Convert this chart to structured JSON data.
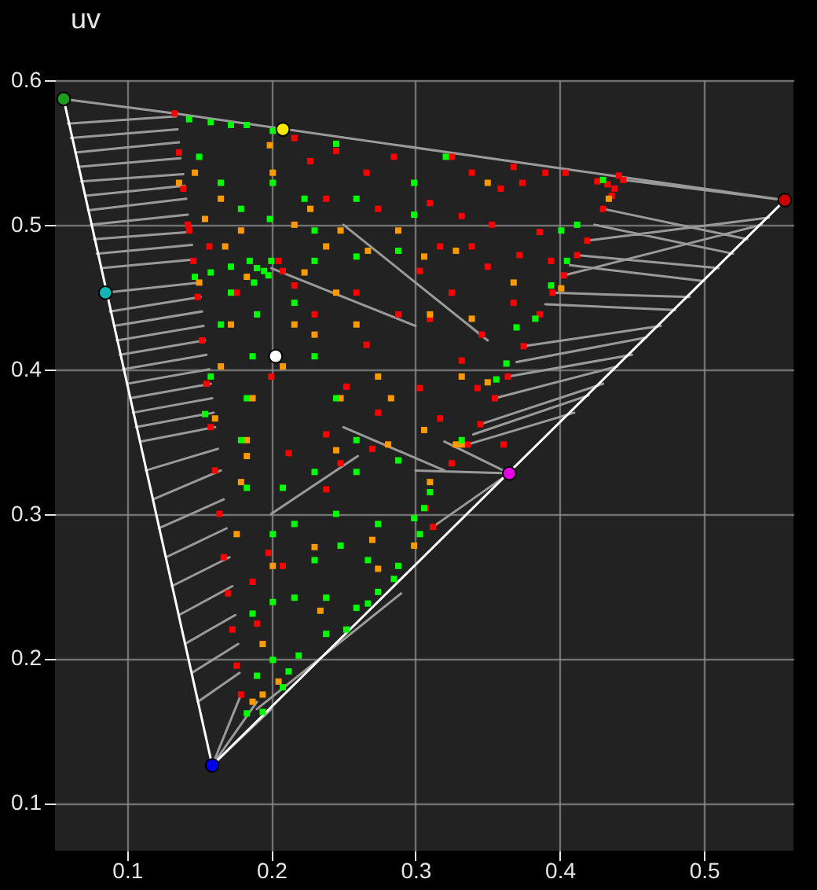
{
  "chart_data": {
    "type": "scatter",
    "title": "uv",
    "xlim": [
      0.05,
      0.562
    ],
    "ylim": [
      0.067,
      0.6
    ],
    "xticks": [
      0.1,
      0.2,
      0.3,
      0.4,
      0.5
    ],
    "yticks": [
      0.1,
      0.2,
      0.3,
      0.4,
      0.5,
      0.6
    ],
    "grid": true,
    "series": [
      {
        "type": "line",
        "color": "#9a9a9a",
        "x": [
          0.056,
          0.133,
          null,
          0.059,
          0.134,
          null,
          0.061,
          0.135,
          null,
          0.064,
          0.136,
          null,
          0.066,
          0.137,
          null,
          0.068,
          0.139,
          null,
          0.071,
          0.14,
          null,
          0.073,
          0.141,
          null,
          0.075,
          0.142,
          null,
          0.077,
          0.144,
          null,
          0.079,
          0.145,
          null,
          0.082,
          0.147,
          null,
          0.085,
          0.15,
          null,
          0.088,
          0.151,
          null,
          0.091,
          0.152,
          null,
          0.093,
          0.153,
          null,
          0.095,
          0.154,
          null,
          0.097,
          0.155,
          null,
          0.1,
          0.157,
          null,
          0.102,
          0.158,
          null,
          0.104,
          0.159,
          null,
          0.106,
          0.16,
          null,
          0.109,
          0.161,
          null,
          0.113,
          0.163,
          null,
          0.118,
          0.165,
          null,
          0.122,
          0.167,
          null,
          0.127,
          0.169,
          null,
          0.131,
          0.171,
          null,
          0.136,
          0.173,
          null,
          0.14,
          0.175,
          null,
          0.145,
          0.177,
          null,
          0.149,
          0.178,
          null,
          0.159,
          0.179,
          null,
          0.159,
          0.19,
          null,
          0.159,
          0.2,
          null,
          0.133,
          0.556,
          null,
          0.556,
          0.444,
          null,
          0.545,
          0.419,
          null,
          0.54,
          0.403,
          null,
          0.53,
          0.43,
          null,
          0.52,
          0.424,
          null,
          0.51,
          0.412,
          null,
          0.5,
          0.407,
          null,
          0.49,
          0.395,
          null,
          0.48,
          0.39,
          null,
          0.47,
          0.375,
          null,
          0.46,
          0.37,
          null,
          0.45,
          0.364,
          null,
          0.44,
          0.355,
          null,
          0.43,
          0.345,
          null,
          0.42,
          0.34,
          null,
          0.41,
          0.336,
          null,
          0.365,
          0.312,
          null,
          0.365,
          0.3,
          null,
          0.365,
          0.32,
          null,
          0.19,
          0.29,
          null,
          0.2,
          0.26,
          null,
          0.25,
          0.32,
          null,
          0.2,
          0.3,
          null,
          0.25,
          0.35
        ],
        "values": [
          0.587,
          0.577,
          null,
          0.57,
          0.575,
          null,
          0.56,
          0.566,
          null,
          0.55,
          0.557,
          null,
          0.54,
          0.546,
          null,
          0.53,
          0.535,
          null,
          0.52,
          0.527,
          null,
          0.51,
          0.518,
          null,
          0.5,
          0.507,
          null,
          0.49,
          0.495,
          null,
          0.48,
          0.486,
          null,
          0.47,
          0.476,
          null,
          0.453,
          0.46,
          null,
          0.44,
          0.45,
          null,
          0.43,
          0.44,
          null,
          0.42,
          0.43,
          null,
          0.41,
          0.42,
          null,
          0.4,
          0.41,
          null,
          0.39,
          0.4,
          null,
          0.38,
          0.39,
          null,
          0.37,
          0.38,
          null,
          0.36,
          0.37,
          null,
          0.35,
          0.36,
          null,
          0.33,
          0.345,
          null,
          0.31,
          0.33,
          null,
          0.29,
          0.31,
          null,
          0.27,
          0.29,
          null,
          0.25,
          0.27,
          null,
          0.23,
          0.25,
          null,
          0.21,
          0.23,
          null,
          0.19,
          0.21,
          null,
          0.17,
          0.19,
          null,
          0.126,
          0.175,
          null,
          0.126,
          0.17,
          null,
          0.126,
          0.165,
          null,
          0.577,
          0.517,
          null,
          0.517,
          0.531,
          null,
          0.505,
          0.489,
          null,
          0.5,
          0.465,
          null,
          0.49,
          0.511,
          null,
          0.48,
          0.5,
          null,
          0.47,
          0.479,
          null,
          0.461,
          0.472,
          null,
          0.45,
          0.453,
          null,
          0.441,
          0.445,
          null,
          0.43,
          0.416,
          null,
          0.422,
          0.405,
          null,
          0.41,
          0.395,
          null,
          0.402,
          0.38,
          null,
          0.39,
          0.362,
          null,
          0.382,
          0.355,
          null,
          0.37,
          0.348,
          null,
          0.328,
          0.291,
          null,
          0.328,
          0.33,
          null,
          0.328,
          0.35,
          null,
          0.165,
          0.245,
          null,
          0.3,
          0.34,
          null,
          0.36,
          0.33,
          null,
          0.47,
          0.43,
          null,
          0.5,
          0.42
        ]
      },
      {
        "type": "line",
        "color": "#ffffff",
        "x": [
          0.056,
          0.159,
          0.556
        ],
        "values": [
          0.587,
          0.126,
          0.517
        ]
      },
      {
        "marker": "square",
        "color": "#ff0000",
        "x": [
          0.133,
          0.136,
          0.139,
          0.142,
          0.146,
          0.149,
          0.152,
          0.155,
          0.158,
          0.161,
          0.164,
          0.167,
          0.17,
          0.173,
          0.176,
          0.179,
          0.444,
          0.436,
          0.43,
          0.419,
          0.412,
          0.403,
          0.395,
          0.386,
          0.375,
          0.364,
          0.355,
          0.345,
          0.336,
          0.325,
          0.312,
          0.307,
          0.438,
          0.441,
          0.433,
          0.426,
          0.325,
          0.339,
          0.368,
          0.39,
          0.404,
          0.374,
          0.359,
          0.31,
          0.332,
          0.353,
          0.386,
          0.317,
          0.339,
          0.372,
          0.303,
          0.35,
          0.394,
          0.325,
          0.368,
          0.31,
          0.346,
          0.332,
          0.303,
          0.343,
          0.317,
          0.361,
          0.216,
          0.245,
          0.266,
          0.227,
          0.285,
          0.238,
          0.274,
          0.208,
          0.205,
          0.216,
          0.176,
          0.157,
          0.143,
          0.23,
          0.259,
          0.288,
          0.266,
          0.2,
          0.252,
          0.238,
          0.274,
          0.187,
          0.198,
          0.208,
          0.19,
          0.238,
          0.248,
          0.27,
          0.212
        ],
        "values": [
          0.577,
          0.55,
          0.525,
          0.5,
          0.475,
          0.45,
          0.42,
          0.39,
          0.36,
          0.33,
          0.3,
          0.27,
          0.245,
          0.22,
          0.195,
          0.175,
          0.531,
          0.52,
          0.511,
          0.489,
          0.479,
          0.465,
          0.453,
          0.438,
          0.416,
          0.395,
          0.38,
          0.362,
          0.348,
          0.335,
          0.291,
          0.304,
          0.525,
          0.534,
          0.528,
          0.53,
          0.547,
          0.536,
          0.54,
          0.536,
          0.536,
          0.529,
          0.525,
          0.515,
          0.506,
          0.5,
          0.495,
          0.485,
          0.485,
          0.479,
          0.468,
          0.471,
          0.475,
          0.453,
          0.446,
          0.435,
          0.424,
          0.406,
          0.387,
          0.387,
          0.366,
          0.348,
          0.56,
          0.551,
          0.536,
          0.544,
          0.547,
          0.518,
          0.511,
          0.468,
          0.475,
          0.458,
          0.453,
          0.485,
          0.496,
          0.438,
          0.453,
          0.438,
          0.417,
          0.395,
          0.388,
          0.355,
          0.37,
          0.253,
          0.273,
          0.264,
          0.224,
          0.317,
          0.335,
          0.345,
          0.342
        ]
      },
      {
        "marker": "square",
        "color": "#ff9900",
        "x": [
          0.136,
          0.147,
          0.165,
          0.154,
          0.179,
          0.168,
          0.201,
          0.199,
          0.227,
          0.216,
          0.248,
          0.238,
          0.267,
          0.288,
          0.223,
          0.245,
          0.23,
          0.216,
          0.208,
          0.259,
          0.274,
          0.248,
          0.172,
          0.165,
          0.187,
          0.161,
          0.183,
          0.283,
          0.15,
          0.183,
          0.328,
          0.306,
          0.35,
          0.434,
          0.31,
          0.368,
          0.401,
          0.332,
          0.35,
          0.306,
          0.328,
          0.339,
          0.176,
          0.201,
          0.194,
          0.205,
          0.187,
          0.194,
          0.234,
          0.23,
          0.27,
          0.274,
          0.245,
          0.281,
          0.179,
          0.183,
          0.31,
          0.299,
          0.332
        ],
        "values": [
          0.529,
          0.536,
          0.518,
          0.504,
          0.496,
          0.485,
          0.536,
          0.555,
          0.511,
          0.5,
          0.496,
          0.485,
          0.482,
          0.496,
          0.467,
          0.453,
          0.424,
          0.431,
          0.402,
          0.431,
          0.395,
          0.38,
          0.431,
          0.402,
          0.38,
          0.366,
          0.351,
          0.38,
          0.46,
          0.464,
          0.482,
          0.478,
          0.529,
          0.518,
          0.438,
          0.46,
          0.456,
          0.395,
          0.391,
          0.358,
          0.348,
          0.435,
          0.286,
          0.264,
          0.21,
          0.184,
          0.17,
          0.175,
          0.233,
          0.277,
          0.282,
          0.262,
          0.344,
          0.348,
          0.322,
          0.34,
          0.322,
          0.278,
          0.348
        ]
      },
      {
        "marker": "square",
        "color": "#00ff00",
        "x": [
          0.19,
          0.195,
          0.185,
          0.198,
          0.188,
          0.2,
          0.143,
          0.158,
          0.172,
          0.183,
          0.201,
          0.201,
          0.199,
          0.15,
          0.165,
          0.179,
          0.158,
          0.172,
          0.147,
          0.172,
          0.165,
          0.158,
          0.154,
          0.19,
          0.187,
          0.183,
          0.179,
          0.216,
          0.23,
          0.245,
          0.259,
          0.23,
          0.259,
          0.288,
          0.23,
          0.259,
          0.245,
          0.223,
          0.299,
          0.299,
          0.321,
          0.412,
          0.401,
          0.405,
          0.394,
          0.383,
          0.37,
          0.363,
          0.356,
          0.332,
          0.43,
          0.183,
          0.208,
          0.23,
          0.259,
          0.288,
          0.201,
          0.216,
          0.245,
          0.274,
          0.23,
          0.248,
          0.267,
          0.288,
          0.187,
          0.201,
          0.216,
          0.238,
          0.259,
          0.267,
          0.252,
          0.219,
          0.238,
          0.19,
          0.201,
          0.212,
          0.183,
          0.194,
          0.208,
          0.285,
          0.274,
          0.299,
          0.31,
          0.303,
          0.306
        ],
        "values": [
          0.47,
          0.468,
          0.475,
          0.465,
          0.46,
          0.475,
          0.573,
          0.571,
          0.569,
          0.569,
          0.565,
          0.529,
          0.504,
          0.547,
          0.529,
          0.511,
          0.467,
          0.471,
          0.464,
          0.453,
          0.431,
          0.395,
          0.369,
          0.438,
          0.409,
          0.38,
          0.351,
          0.446,
          0.409,
          0.38,
          0.351,
          0.475,
          0.478,
          0.482,
          0.496,
          0.518,
          0.556,
          0.518,
          0.507,
          0.529,
          0.547,
          0.5,
          0.496,
          0.475,
          0.458,
          0.435,
          0.429,
          0.404,
          0.393,
          0.351,
          0.531,
          0.318,
          0.318,
          0.329,
          0.329,
          0.337,
          0.286,
          0.293,
          0.3,
          0.293,
          0.268,
          0.278,
          0.268,
          0.264,
          0.231,
          0.239,
          0.242,
          0.242,
          0.235,
          0.238,
          0.22,
          0.202,
          0.217,
          0.188,
          0.199,
          0.191,
          0.162,
          0.163,
          0.18,
          0.255,
          0.246,
          0.297,
          0.315,
          0.286,
          0.304
        ]
      },
      {
        "marker": "circle",
        "colors": [
          "#1e9e1e",
          "#12b4b4",
          "#f5e600",
          "#c80000",
          "#e600e6",
          "#0000f0",
          "#ffffff"
        ],
        "x": [
          0.056,
          0.085,
          0.208,
          0.556,
          0.365,
          0.159,
          0.203
        ],
        "values": [
          0.587,
          0.453,
          0.566,
          0.517,
          0.328,
          0.126,
          0.409
        ]
      }
    ]
  }
}
